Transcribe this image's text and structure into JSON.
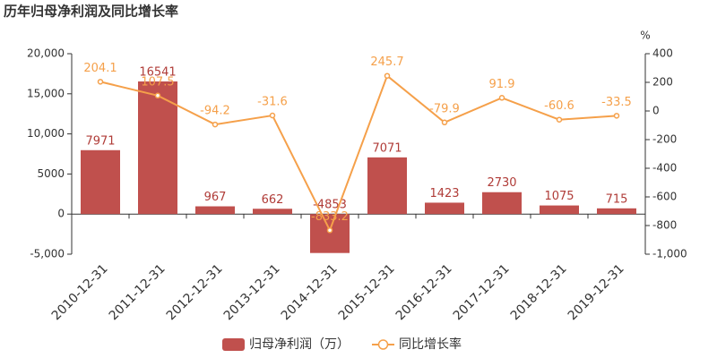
{
  "chart_data": {
    "type": "combo",
    "title": "历年归母净利润及同比增长率",
    "categories": [
      "2010-12-31",
      "2011-12-31",
      "2012-12-31",
      "2013-12-31",
      "2014-12-31",
      "2015-12-31",
      "2016-12-31",
      "2017-12-31",
      "2018-12-31",
      "2019-12-31"
    ],
    "series": [
      {
        "name": "归母净利润（万）",
        "type": "bar",
        "color": "#c0504d",
        "values": [
          7971,
          16541,
          967,
          662,
          -4853,
          7071,
          1423,
          2730,
          1075,
          715
        ]
      },
      {
        "name": "同比增长率",
        "type": "line",
        "axis": "y2",
        "color": "#f5a04a",
        "values": [
          204.1,
          107.5,
          -94.2,
          -31.6,
          -833.2,
          245.7,
          -79.9,
          91.9,
          -60.6,
          -33.5
        ]
      }
    ],
    "ylim": [
      -5000,
      20000
    ],
    "yticks": [
      {
        "value": -5000,
        "label": "-5,000"
      },
      0,
      5000,
      {
        "value": 10000,
        "label": "10,000"
      },
      {
        "value": 15000,
        "label": "15,000"
      },
      {
        "value": 20000,
        "label": "20,000"
      }
    ],
    "y2label": "%",
    "y2lim": [
      -1000,
      400
    ],
    "y2ticks": [
      {
        "value": -1000,
        "label": "-1,000"
      },
      -800,
      -600,
      -400,
      -200,
      0,
      200,
      400
    ],
    "grid": false
  }
}
